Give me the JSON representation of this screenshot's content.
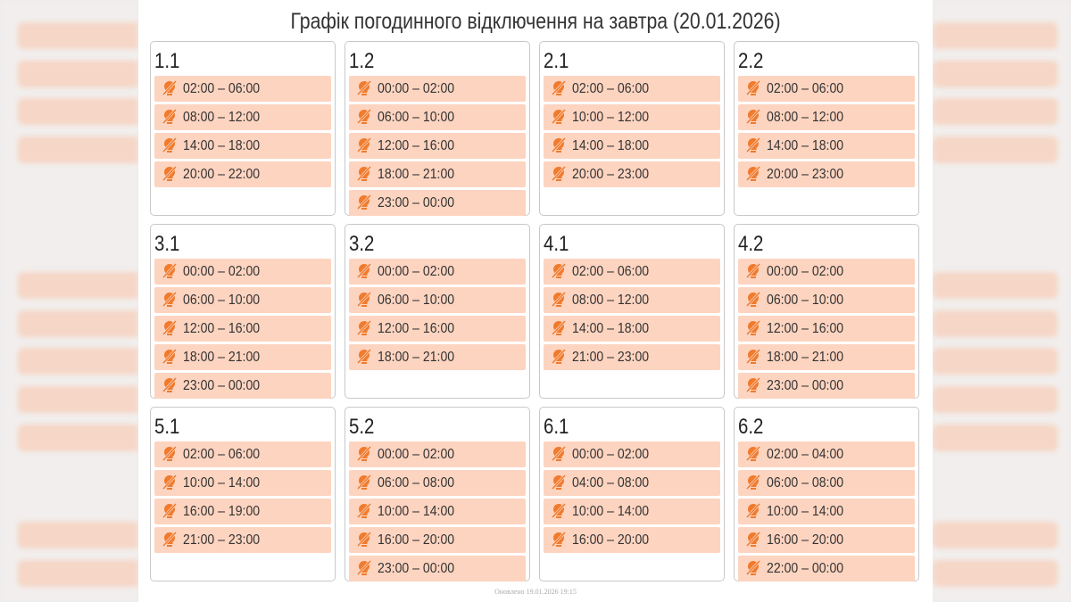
{
  "title": "Графік погодинного відключення на завтра (20.01.2026)",
  "groups": [
    {
      "name": "1.1",
      "slots": [
        "02:00 – 06:00",
        "08:00 – 12:00",
        "14:00 – 18:00",
        "20:00 – 22:00"
      ]
    },
    {
      "name": "1.2",
      "slots": [
        "00:00 – 02:00",
        "06:00 – 10:00",
        "12:00 – 16:00",
        "18:00 – 21:00",
        "23:00 – 00:00"
      ]
    },
    {
      "name": "2.1",
      "slots": [
        "02:00 – 06:00",
        "10:00 – 12:00",
        "14:00 – 18:00",
        "20:00 – 23:00"
      ]
    },
    {
      "name": "2.2",
      "slots": [
        "02:00 – 06:00",
        "08:00 – 12:00",
        "14:00 – 18:00",
        "20:00 – 23:00"
      ]
    },
    {
      "name": "3.1",
      "slots": [
        "00:00 – 02:00",
        "06:00 – 10:00",
        "12:00 – 16:00",
        "18:00 – 21:00",
        "23:00 – 00:00"
      ]
    },
    {
      "name": "3.2",
      "slots": [
        "00:00 – 02:00",
        "06:00 – 10:00",
        "12:00 – 16:00",
        "18:00 – 21:00"
      ]
    },
    {
      "name": "4.1",
      "slots": [
        "02:00 – 06:00",
        "08:00 – 12:00",
        "14:00 – 18:00",
        "21:00 – 23:00"
      ]
    },
    {
      "name": "4.2",
      "slots": [
        "00:00 – 02:00",
        "06:00 – 10:00",
        "12:00 – 16:00",
        "18:00 – 21:00",
        "23:00 – 00:00"
      ]
    },
    {
      "name": "5.1",
      "slots": [
        "02:00 – 06:00",
        "10:00 – 14:00",
        "16:00 – 19:00",
        "21:00 – 23:00"
      ]
    },
    {
      "name": "5.2",
      "slots": [
        "00:00 – 02:00",
        "06:00 – 08:00",
        "10:00 – 14:00",
        "16:00 – 20:00",
        "23:00 – 00:00"
      ]
    },
    {
      "name": "6.1",
      "slots": [
        "00:00 – 02:00",
        "04:00 – 08:00",
        "10:00 – 14:00",
        "16:00 – 20:00"
      ]
    },
    {
      "name": "6.2",
      "slots": [
        "02:00 – 04:00",
        "06:00 – 08:00",
        "10:00 – 14:00",
        "16:00 – 20:00",
        "22:00 – 00:00"
      ]
    }
  ],
  "footer": "Оновлено 19.01.2026 19:15"
}
